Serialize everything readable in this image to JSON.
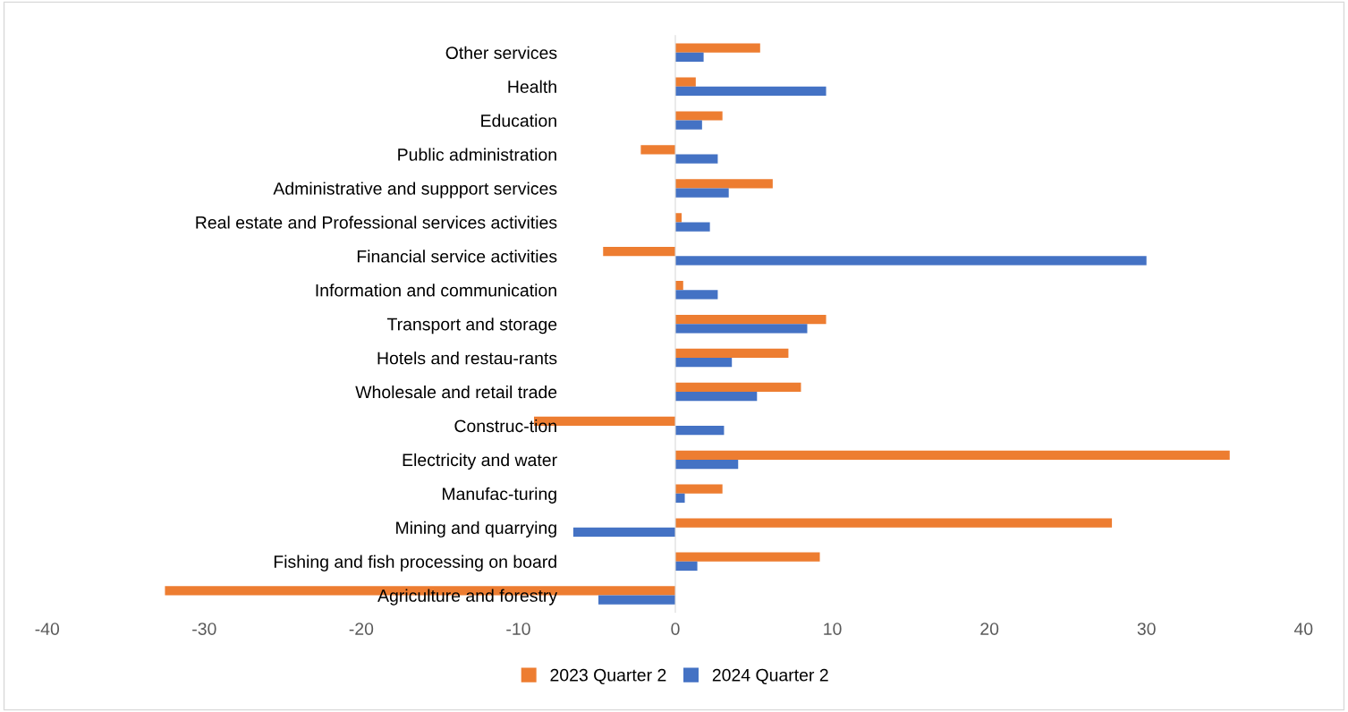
{
  "chart_data": {
    "type": "bar",
    "orientation": "horizontal",
    "categories": [
      "Other services",
      "Health",
      "Education",
      "Public administration",
      "Administrative and suppport services",
      "Real estate and Professional services activities",
      "Financial service activities",
      "Information and communication",
      "Transport and storage",
      "Hotels and restau-rants",
      "Wholesale and retail trade",
      "Construc-tion",
      "Electricity and water",
      "Manufac-turing",
      "Mining and quarrying",
      "Fishing and fish processing on board",
      "Agriculture and forestry"
    ],
    "series": [
      {
        "name": "2023 Quarter 2",
        "color": "#ed7d31",
        "values": [
          5.4,
          1.3,
          3.0,
          -2.2,
          6.2,
          0.4,
          -4.6,
          0.5,
          9.6,
          7.2,
          8.0,
          -9.0,
          35.3,
          3.0,
          27.8,
          9.2,
          -32.5
        ]
      },
      {
        "name": "2024 Quarter 2",
        "color": "#4472c4",
        "values": [
          1.8,
          9.6,
          1.7,
          2.7,
          3.4,
          2.2,
          30.0,
          2.7,
          8.4,
          3.6,
          5.2,
          3.1,
          4.0,
          0.6,
          -6.5,
          1.4,
          -4.9
        ]
      }
    ],
    "xlim": [
      -40,
      40
    ],
    "xticks": [
      -40,
      -30,
      -20,
      -10,
      0,
      10,
      20,
      30,
      40
    ],
    "legend": "bottom"
  }
}
